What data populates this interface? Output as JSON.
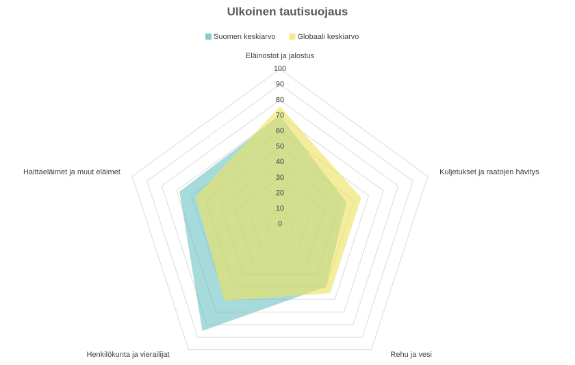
{
  "chart_data": {
    "type": "radar",
    "title": "Ulkoinen tautisuojaus",
    "categories": [
      "Eläinostot ja jalostus",
      "Kuljetukset ja raatojen hävitys",
      "Rehu ja vesi",
      "Henkilökunta ja vierailijat",
      "Haittaeläimet ja muut eläimet"
    ],
    "series": [
      {
        "name": "Suomen keskiarvo",
        "color": "#4fb8b8",
        "values": [
          70,
          45,
          50,
          85,
          68
        ]
      },
      {
        "name": "Globaali keskiarvo",
        "color": "#ede15a",
        "values": [
          76,
          55,
          55,
          61,
          57
        ]
      }
    ],
    "ylim": [
      0,
      100
    ],
    "yticks": [
      0,
      10,
      20,
      30,
      40,
      50,
      60,
      70,
      80,
      90,
      100
    ],
    "grid": true,
    "legend": "top"
  }
}
